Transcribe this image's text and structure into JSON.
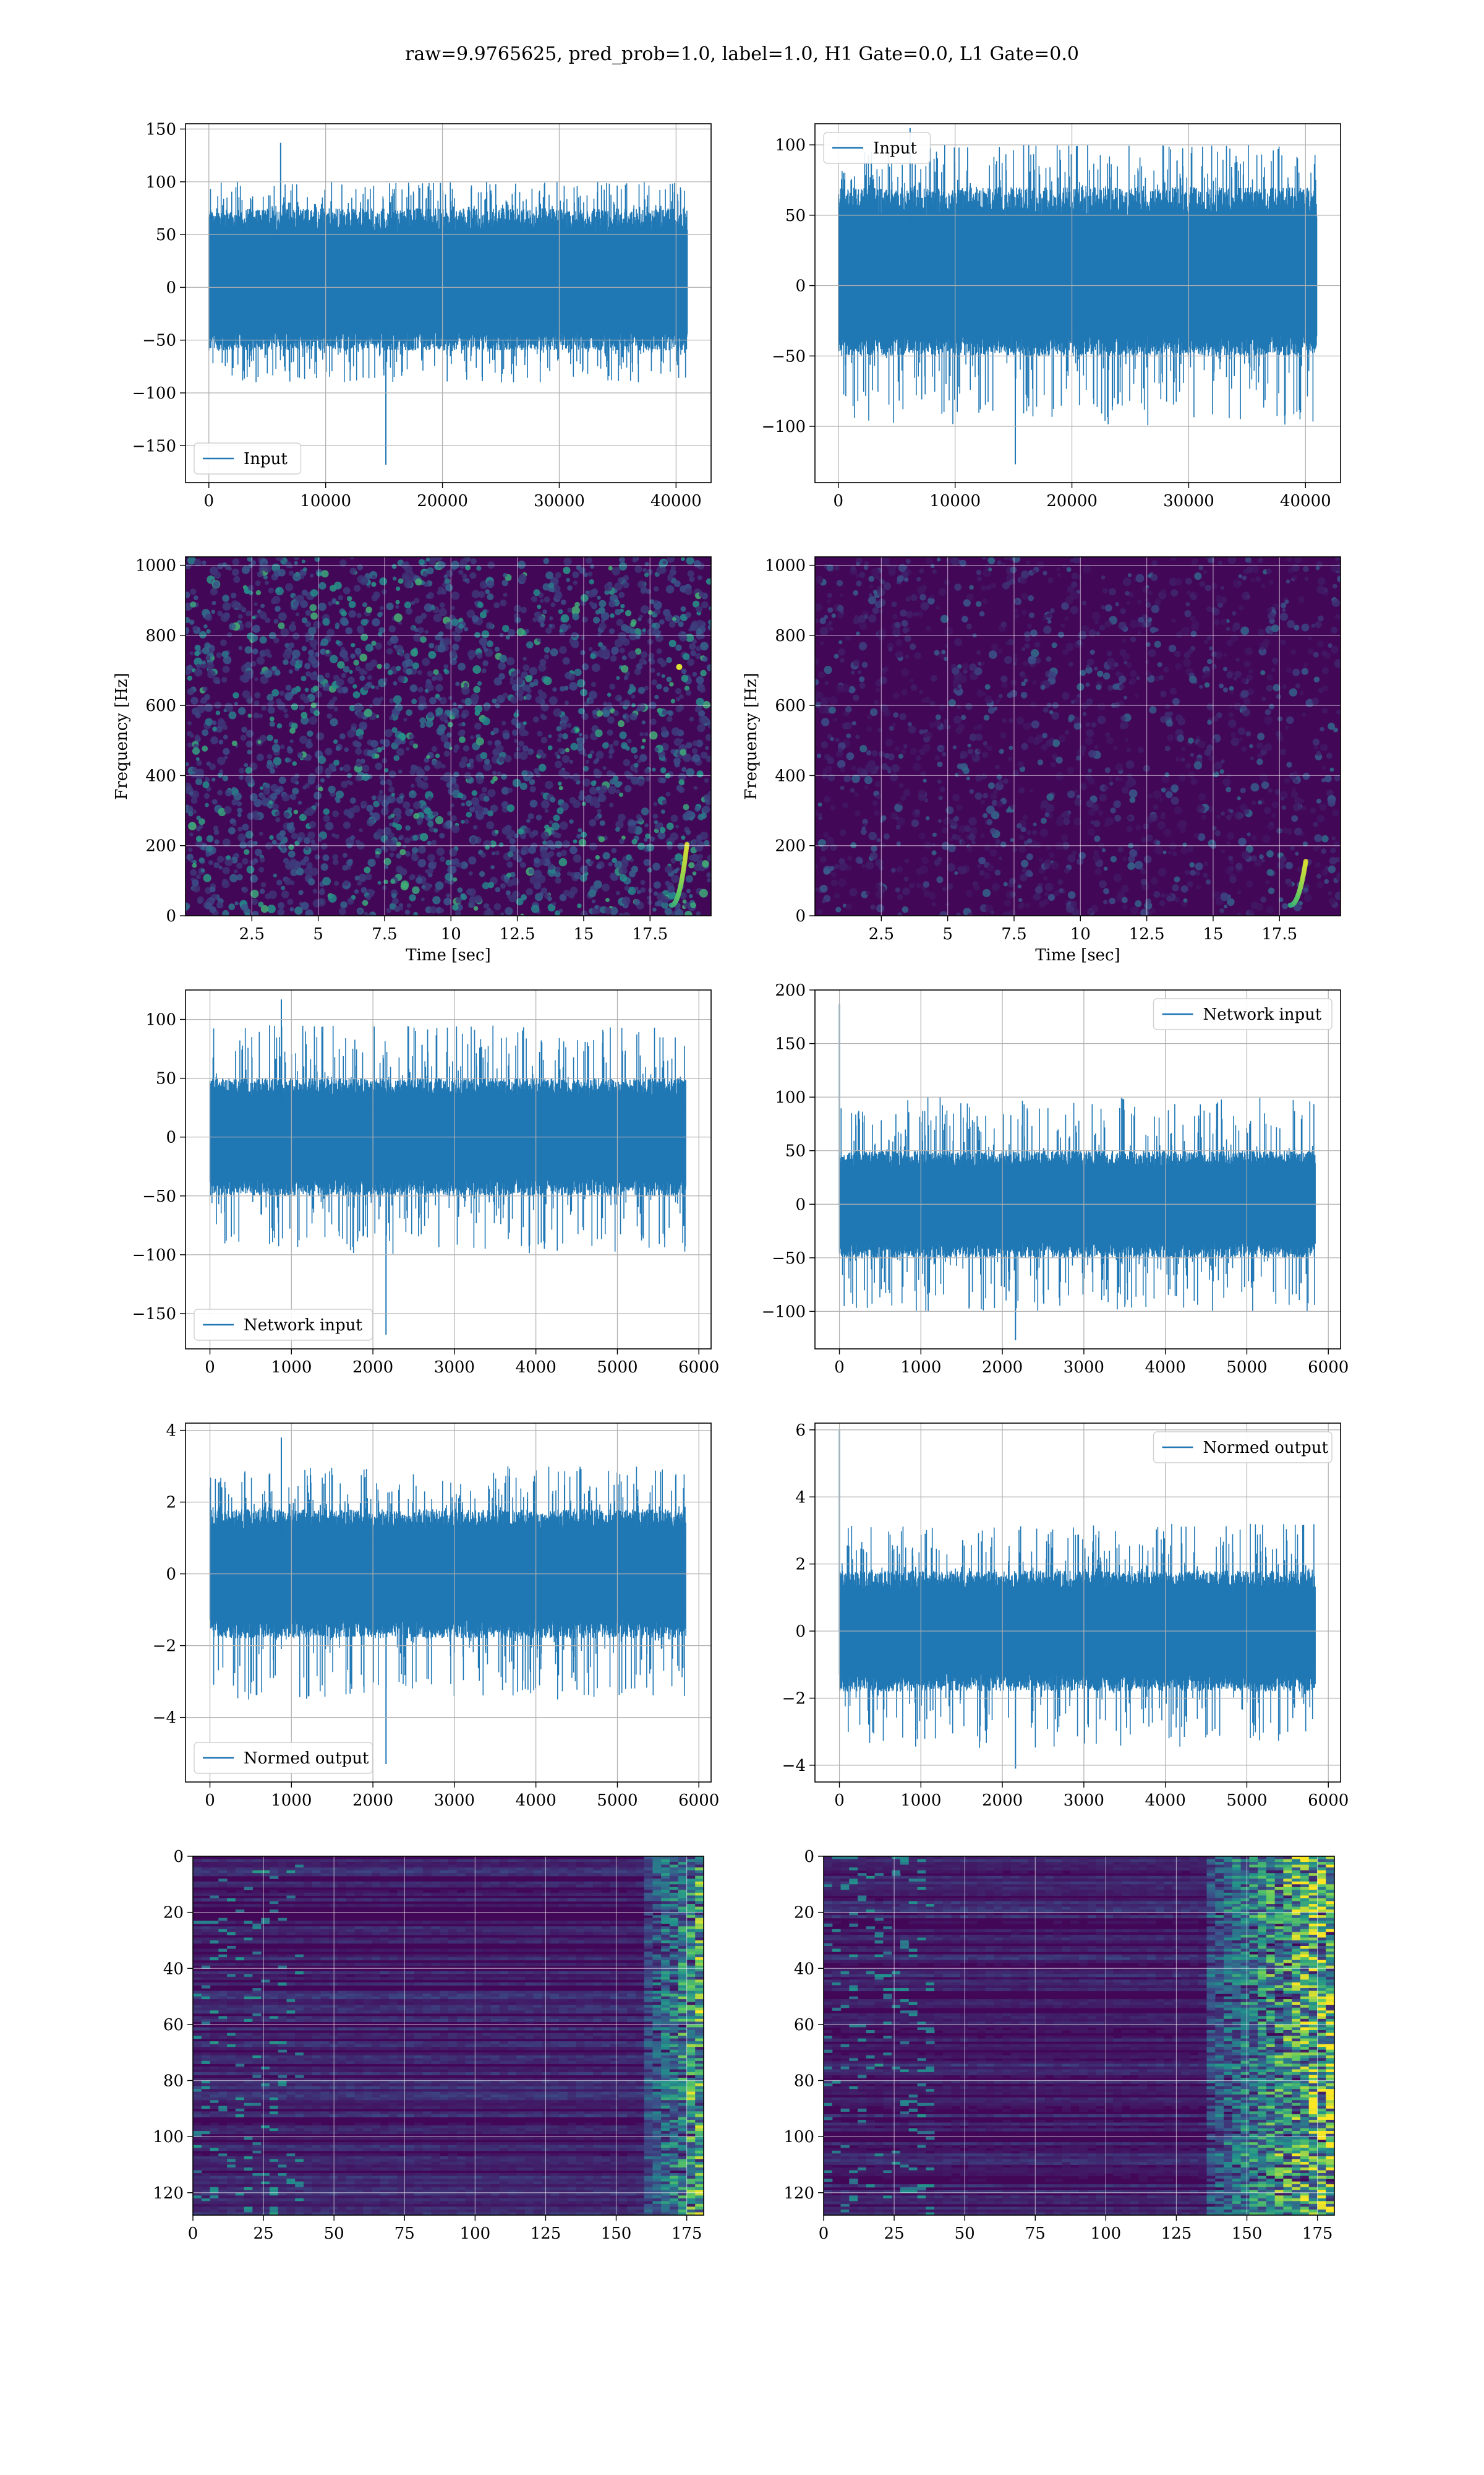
{
  "figure": {
    "title": "raw=9.9765625, pred_prob=1.0, label=1.0, H1 Gate=0.0, L1 Gate=0.0",
    "series_color": "#1f77b4"
  },
  "chart_data": [
    {
      "id": "r0c0",
      "type": "line",
      "panel": "row1-left",
      "title": "",
      "xlabel": "",
      "ylabel": "",
      "xlim": [
        -2000,
        43000
      ],
      "ylim": [
        -185,
        155
      ],
      "xticks": [
        0,
        10000,
        20000,
        30000,
        40000
      ],
      "yticks": [
        -150,
        -100,
        -50,
        0,
        50,
        100,
        150
      ],
      "grid": true,
      "legend": {
        "location": "lower left",
        "entries": [
          "Input"
        ]
      },
      "series": [
        {
          "name": "Input",
          "n_samples": 40960,
          "envelope": {
            "upper": [
              75,
              100
            ],
            "lower": [
              -60,
              -90
            ]
          },
          "max": 137,
          "min": -168
        }
      ]
    },
    {
      "id": "r0c1",
      "type": "line",
      "panel": "row1-right",
      "title": "",
      "xlabel": "",
      "ylabel": "",
      "xlim": [
        -2000,
        43000
      ],
      "ylim": [
        -140,
        115
      ],
      "xticks": [
        0,
        10000,
        20000,
        30000,
        40000
      ],
      "yticks": [
        -100,
        -50,
        0,
        50,
        100
      ],
      "grid": true,
      "legend": {
        "location": "upper left",
        "entries": [
          "Input"
        ]
      },
      "series": [
        {
          "name": "Input",
          "n_samples": 40960,
          "envelope": {
            "upper": [
              70,
              100
            ],
            "lower": [
              -50,
              -100
            ]
          },
          "max": 112,
          "min": -127
        }
      ]
    },
    {
      "id": "r1c0",
      "type": "heatmap",
      "panel": "row2-left",
      "title": "",
      "xlabel": "Time [sec]",
      "ylabel": "Frequency [Hz]",
      "xlim": [
        0,
        19.8
      ],
      "ylim": [
        0,
        1024
      ],
      "xticks": [
        2.5,
        5.0,
        7.5,
        10.0,
        12.5,
        15.0,
        17.5
      ],
      "yticks": [
        0,
        200,
        400,
        600,
        800,
        1000
      ],
      "grid": true,
      "colormap": "viridis",
      "features": [
        "broadband speckle noise",
        "bright speckle near t=18.5 s, f=710 Hz",
        "chirp near t=18.5 s, f=50-200 Hz"
      ]
    },
    {
      "id": "r1c1",
      "type": "heatmap",
      "panel": "row2-right",
      "title": "",
      "xlabel": "Time [sec]",
      "ylabel": "Frequency [Hz]",
      "xlim": [
        0,
        19.8
      ],
      "ylim": [
        0,
        1024
      ],
      "xticks": [
        2.5,
        5.0,
        7.5,
        10.0,
        12.5,
        15.0,
        17.5
      ],
      "yticks": [
        0,
        200,
        400,
        600,
        800,
        1000
      ],
      "grid": true,
      "colormap": "viridis",
      "features": [
        "faint speckle noise",
        "bright chirp near t=18.2 s, f=30-150 Hz"
      ]
    },
    {
      "id": "r2c0",
      "type": "line",
      "panel": "row3-left",
      "title": "",
      "xlabel": "",
      "ylabel": "",
      "xlim": [
        -300,
        6150
      ],
      "ylim": [
        -180,
        125
      ],
      "xticks": [
        0,
        1000,
        2000,
        3000,
        4000,
        5000,
        6000
      ],
      "yticks": [
        -150,
        -100,
        -50,
        0,
        50,
        100
      ],
      "grid": true,
      "legend": {
        "location": "lower left",
        "entries": [
          "Network input"
        ]
      },
      "series": [
        {
          "name": "Network input",
          "n_samples": 5840,
          "envelope": {
            "upper": [
              50,
              95
            ],
            "lower": [
              -50,
              -100
            ]
          },
          "max": 117,
          "min": -168
        }
      ]
    },
    {
      "id": "r2c1",
      "type": "line",
      "panel": "row3-right",
      "title": "",
      "xlabel": "",
      "ylabel": "",
      "xlim": [
        -300,
        6150
      ],
      "ylim": [
        -135,
        200
      ],
      "xticks": [
        0,
        1000,
        2000,
        3000,
        4000,
        5000,
        6000
      ],
      "yticks": [
        -100,
        -50,
        0,
        50,
        100,
        150,
        200
      ],
      "grid": true,
      "legend": {
        "location": "upper right",
        "entries": [
          "Network input"
        ]
      },
      "series": [
        {
          "name": "Network input",
          "n_samples": 5840,
          "envelope": {
            "upper": [
              50,
              100
            ],
            "lower": [
              -50,
              -100
            ]
          },
          "max": 187,
          "min": -127
        }
      ]
    },
    {
      "id": "r3c0",
      "type": "line",
      "panel": "row4-left",
      "title": "",
      "xlabel": "",
      "ylabel": "",
      "xlim": [
        -300,
        6150
      ],
      "ylim": [
        -5.8,
        4.2
      ],
      "xticks": [
        0,
        1000,
        2000,
        3000,
        4000,
        5000,
        6000
      ],
      "yticks": [
        -4,
        -2,
        0,
        2,
        4
      ],
      "grid": true,
      "legend": {
        "location": "lower left",
        "entries": [
          "Normed output"
        ]
      },
      "series": [
        {
          "name": "Normed output",
          "n_samples": 5840,
          "envelope": {
            "upper": [
              1.8,
              3.0
            ],
            "lower": [
              -1.8,
              -3.5
            ]
          },
          "max": 3.8,
          "min": -5.3
        }
      ]
    },
    {
      "id": "r3c1",
      "type": "line",
      "panel": "row4-right",
      "title": "",
      "xlabel": "",
      "ylabel": "",
      "xlim": [
        -300,
        6150
      ],
      "ylim": [
        -4.5,
        6.2
      ],
      "xticks": [
        0,
        1000,
        2000,
        3000,
        4000,
        5000,
        6000
      ],
      "yticks": [
        -4,
        -2,
        0,
        2,
        4,
        6
      ],
      "grid": true,
      "legend": {
        "location": "upper right",
        "entries": [
          "Normed output"
        ]
      },
      "series": [
        {
          "name": "Normed output",
          "n_samples": 5840,
          "envelope": {
            "upper": [
              1.8,
              3.2
            ],
            "lower": [
              -1.8,
              -3.5
            ]
          },
          "max": 6.0,
          "min": -4.1
        }
      ]
    },
    {
      "id": "r4c0",
      "type": "heatmap",
      "panel": "row5-left",
      "title": "",
      "xlabel": "",
      "ylabel": "",
      "xlim": [
        0,
        181
      ],
      "ylim": [
        128,
        0
      ],
      "xticks": [
        0,
        25,
        50,
        75,
        100,
        125,
        150,
        175
      ],
      "yticks": [
        0,
        20,
        40,
        60,
        80,
        100,
        120
      ],
      "grid": true,
      "colormap": "viridis",
      "rows": 128,
      "cols": 181,
      "features": [
        "horizontal banded features",
        "bright activations near columns 160-181"
      ]
    },
    {
      "id": "r4c1",
      "type": "heatmap",
      "panel": "row5-right",
      "title": "",
      "xlabel": "",
      "ylabel": "",
      "xlim": [
        0,
        181
      ],
      "ylim": [
        128,
        0
      ],
      "xticks": [
        0,
        25,
        50,
        75,
        100,
        125,
        150,
        175
      ],
      "yticks": [
        0,
        20,
        40,
        60,
        80,
        100,
        120
      ],
      "grid": true,
      "colormap": "viridis",
      "rows": 128,
      "cols": 181,
      "features": [
        "horizontal banded features",
        "strong bright activations near columns 135-181"
      ]
    }
  ]
}
